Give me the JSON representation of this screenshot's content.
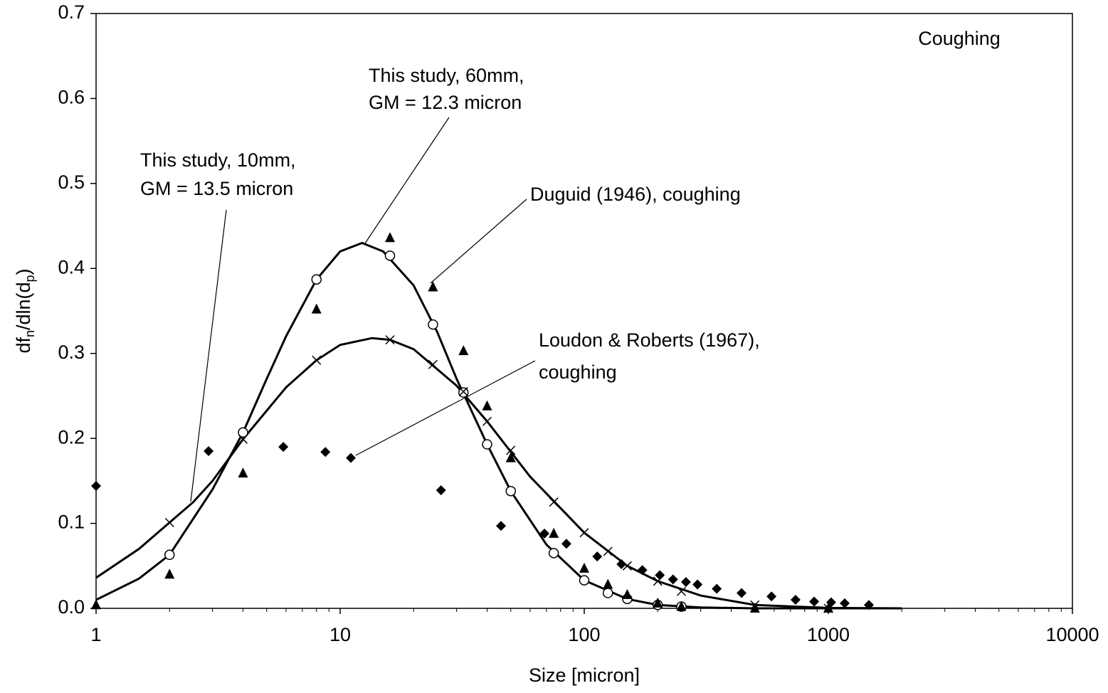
{
  "chart_data": {
    "type": "scatter",
    "xlabel": "Size [micron]",
    "ylabel_parts": [
      "df",
      "n",
      "/dln(d",
      "p",
      ")"
    ],
    "label": "Coughing",
    "xscale": "log",
    "xlim": [
      1,
      10000
    ],
    "ylim": [
      0,
      0.7
    ],
    "xticks": [
      1,
      10,
      100,
      1000,
      10000
    ],
    "x_minor_ticks": [
      2,
      3,
      4,
      5,
      6,
      7,
      8,
      9,
      20,
      30,
      40,
      50,
      60,
      70,
      80,
      90,
      200,
      300,
      400,
      500,
      600,
      700,
      800,
      900,
      2000,
      3000,
      4000,
      5000,
      6000,
      7000,
      8000,
      9000
    ],
    "yticks": [
      {
        "value": 0,
        "label": "0.0"
      },
      0.1,
      0.2,
      0.3,
      0.4,
      0.5,
      0.6,
      0.7
    ],
    "annotations": [
      {
        "text": [
          "This study, 60mm,",
          "GM = 12.3 micron"
        ]
      },
      {
        "text": [
          "This study, 10mm,",
          "GM = 13.5 micron"
        ]
      },
      {
        "text": [
          "Duguid (1946), coughing"
        ]
      },
      {
        "text": [
          "Loudon & Roberts (1967),",
          "coughing"
        ]
      }
    ],
    "series": [
      {
        "mark": "line",
        "color": "#000000",
        "x": [
          1,
          1.5,
          2,
          3,
          4,
          5,
          6,
          8,
          10,
          12.3,
          15,
          20,
          25,
          30,
          40,
          50,
          70,
          100,
          150,
          200,
          300,
          500,
          1000,
          2000
        ],
        "values": [
          0.01,
          0.035,
          0.063,
          0.14,
          0.207,
          0.27,
          0.32,
          0.387,
          0.42,
          0.43,
          0.42,
          0.38,
          0.325,
          0.27,
          0.193,
          0.138,
          0.075,
          0.033,
          0.011,
          0.004,
          0.001,
          0,
          0,
          0
        ]
      },
      {
        "mark": "line",
        "color": "#000000",
        "x": [
          1,
          1.5,
          2,
          2.5,
          3,
          4,
          6,
          8,
          10,
          13.5,
          16,
          20,
          30,
          40,
          60,
          100,
          150,
          200,
          300,
          500,
          1000,
          2000
        ],
        "values": [
          0.036,
          0.07,
          0.101,
          0.125,
          0.15,
          0.199,
          0.26,
          0.292,
          0.31,
          0.318,
          0.316,
          0.305,
          0.262,
          0.22,
          0.155,
          0.089,
          0.05,
          0.032,
          0.015,
          0.004,
          0.0005,
          0
        ]
      },
      {
        "mark": "circle",
        "color": "#000000",
        "x": [
          2,
          4,
          8,
          16,
          24,
          32,
          40,
          50,
          75,
          100,
          125,
          150,
          200,
          250
        ],
        "values": [
          0.063,
          0.207,
          0.387,
          0.415,
          0.334,
          0.254,
          0.193,
          0.138,
          0.065,
          0.033,
          0.018,
          0.011,
          0.004,
          0.002
        ]
      },
      {
        "mark": "cross",
        "color": "#000000",
        "x": [
          2,
          4,
          8,
          16,
          24,
          32,
          40,
          50,
          75,
          100,
          125,
          150,
          200,
          250,
          500,
          1000
        ],
        "values": [
          0.101,
          0.199,
          0.292,
          0.316,
          0.287,
          0.255,
          0.22,
          0.186,
          0.125,
          0.089,
          0.067,
          0.05,
          0.032,
          0.02,
          0.004,
          0
        ]
      },
      {
        "mark": "triangle",
        "color": "#000000",
        "x": [
          1,
          2,
          4,
          8,
          16,
          24,
          32,
          40,
          50,
          75,
          100,
          125,
          150,
          200,
          250,
          500,
          1000
        ],
        "values": [
          0.004,
          0.04,
          0.159,
          0.352,
          0.436,
          0.378,
          0.303,
          0.238,
          0.177,
          0.088,
          0.047,
          0.028,
          0.016,
          0.006,
          0.002,
          0,
          0
        ]
      },
      {
        "mark": "diamond",
        "color": "#000000",
        "x": [
          1,
          2.89,
          5.85,
          8.7,
          11.06,
          25.9,
          45.6,
          68.7,
          84.5,
          113,
          142,
          173,
          204,
          231,
          261,
          291,
          349,
          441,
          585,
          734,
          875,
          1027,
          1167,
          1466
        ],
        "values": [
          0.144,
          0.185,
          0.19,
          0.184,
          0.177,
          0.139,
          0.097,
          0.088,
          0.076,
          0.061,
          0.052,
          0.045,
          0.039,
          0.034,
          0.031,
          0.028,
          0.023,
          0.018,
          0.014,
          0.01,
          0.008,
          0.007,
          0.006,
          0.004
        ]
      }
    ]
  }
}
